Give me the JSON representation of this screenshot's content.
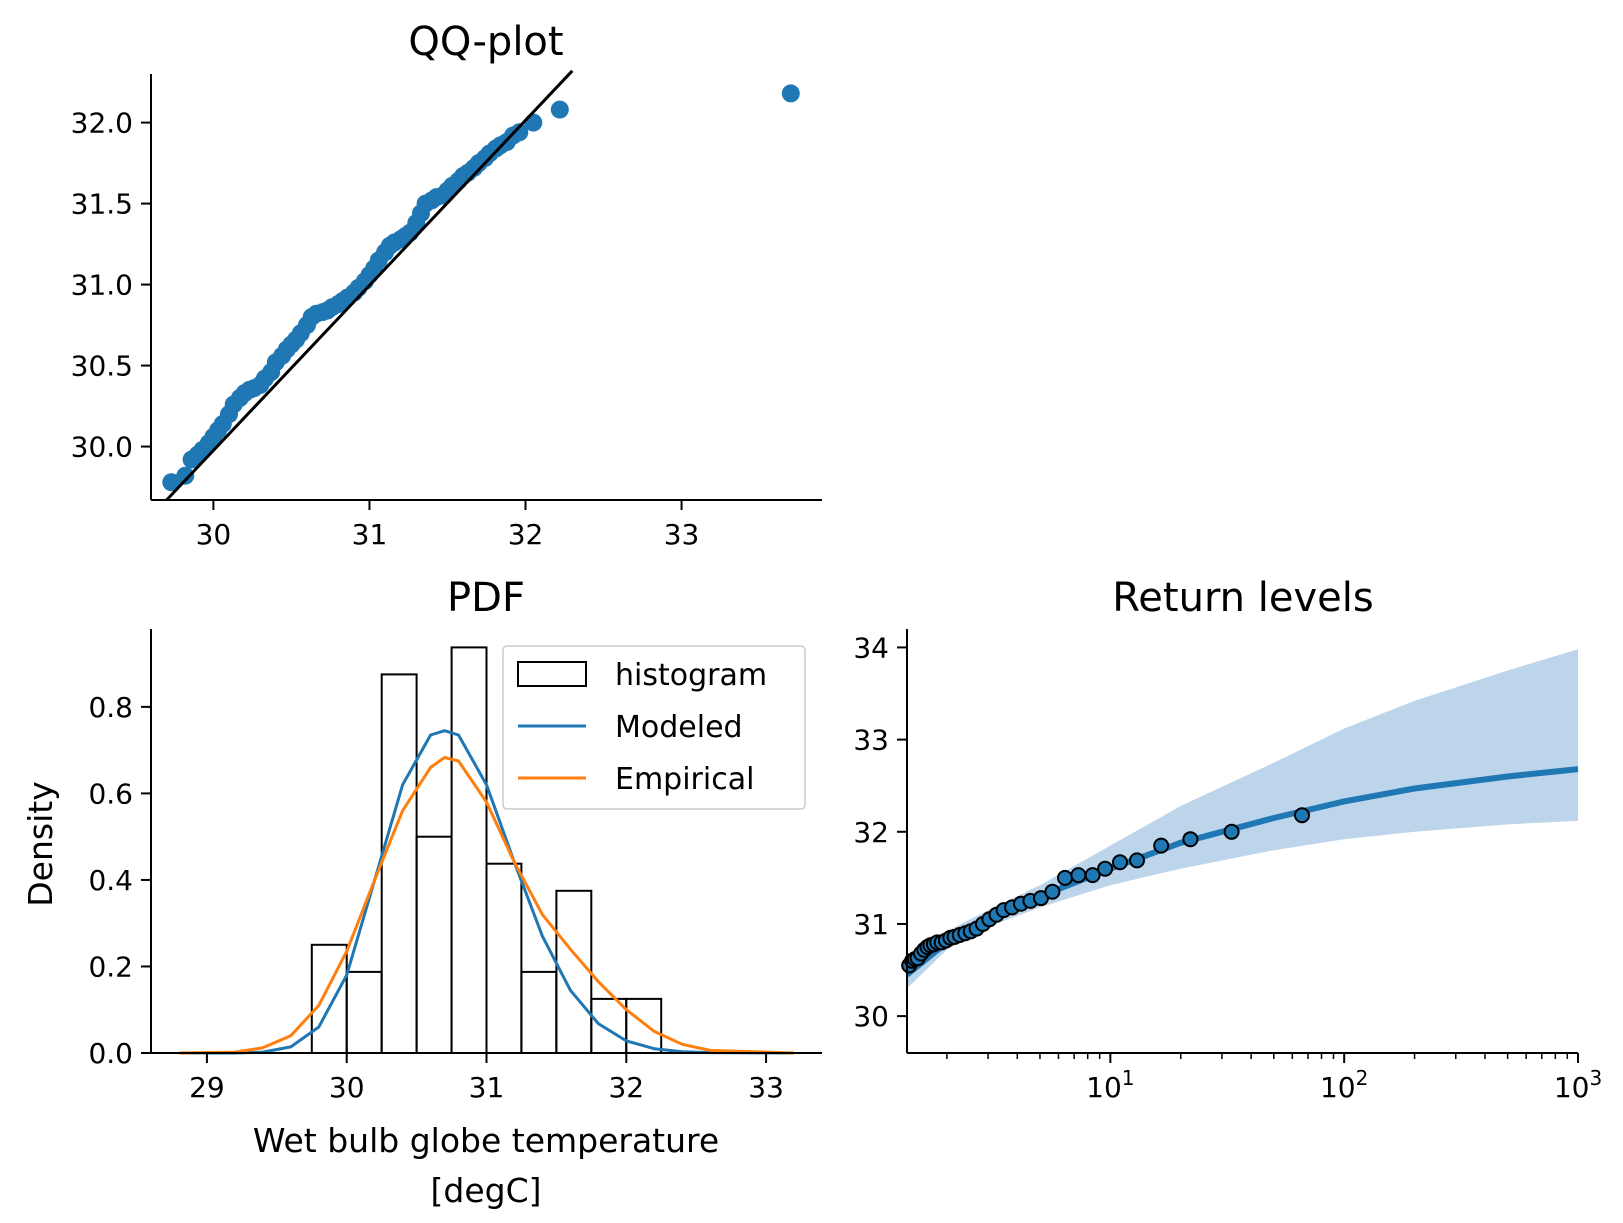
{
  "colors": {
    "blue": "#1f77b4",
    "orange": "#ff7f0e",
    "black": "#000000",
    "band": "#bcd5ea"
  },
  "chart_data": [
    {
      "id": "qq",
      "type": "scatter",
      "title": "QQ-plot",
      "xlabel": "",
      "ylabel": "",
      "xlim": [
        29.6,
        33.9
      ],
      "ylim": [
        29.67,
        32.3
      ],
      "xticks": [
        30,
        31,
        32,
        33
      ],
      "yticks": [
        30.0,
        30.5,
        31.0,
        31.5,
        32.0
      ],
      "xtick_labels": [
        "30",
        "31",
        "32",
        "33"
      ],
      "ytick_labels": [
        "30.0",
        "30.5",
        "31.0",
        "31.5",
        "32.0"
      ],
      "grid": false,
      "series": [
        {
          "kind": "points",
          "color": "#1f77b4",
          "x": [
            29.73,
            29.82,
            29.86,
            29.9,
            29.93,
            29.97,
            30.0,
            30.03,
            30.06,
            30.1,
            30.13,
            30.17,
            30.2,
            30.23,
            30.26,
            30.3,
            30.33,
            30.37,
            30.4,
            30.44,
            30.47,
            30.5,
            30.53,
            30.56,
            30.6,
            30.63,
            30.66,
            30.7,
            30.73,
            30.76,
            30.8,
            30.83,
            30.86,
            30.9,
            30.93,
            30.97,
            31.0,
            31.03,
            31.06,
            31.1,
            31.13,
            31.16,
            31.2,
            31.23,
            31.26,
            31.3,
            31.33,
            31.36,
            31.4,
            31.43,
            31.47,
            31.5,
            31.53,
            31.57,
            31.6,
            31.63,
            31.67,
            31.7,
            31.74,
            31.77,
            31.81,
            31.84,
            31.88,
            31.92,
            31.96,
            32.05,
            32.22,
            33.7
          ],
          "y": [
            29.78,
            29.82,
            29.92,
            29.95,
            29.98,
            30.02,
            30.06,
            30.1,
            30.14,
            30.2,
            30.26,
            30.3,
            30.33,
            30.35,
            30.36,
            30.38,
            30.42,
            30.46,
            30.52,
            30.56,
            30.6,
            30.63,
            30.66,
            30.7,
            30.75,
            30.8,
            30.82,
            30.83,
            30.84,
            30.86,
            30.88,
            30.9,
            30.92,
            30.95,
            30.98,
            31.02,
            31.06,
            31.1,
            31.15,
            31.2,
            31.24,
            31.26,
            31.28,
            31.3,
            31.32,
            31.38,
            31.44,
            31.5,
            31.52,
            31.54,
            31.55,
            31.58,
            31.61,
            31.64,
            31.67,
            31.69,
            31.72,
            31.75,
            31.78,
            31.81,
            31.84,
            31.86,
            31.88,
            31.92,
            31.94,
            32.0,
            32.08,
            32.18
          ]
        },
        {
          "kind": "line",
          "color": "#000000",
          "x": [
            29.7,
            32.3
          ],
          "y": [
            29.67,
            32.32
          ]
        }
      ]
    },
    {
      "id": "pdf",
      "type": "line",
      "title": "PDF",
      "xlabel": "Wet bulb globe temperature\n[degC]",
      "ylabel": "Density",
      "xlim": [
        28.6,
        33.4
      ],
      "ylim": [
        0.0,
        0.98
      ],
      "xticks": [
        29,
        30,
        31,
        32,
        33
      ],
      "yticks": [
        0.0,
        0.2,
        0.4,
        0.6,
        0.8
      ],
      "xtick_labels": [
        "29",
        "30",
        "31",
        "32",
        "33"
      ],
      "ytick_labels": [
        "0.0",
        "0.2",
        "0.4",
        "0.6",
        "0.8"
      ],
      "grid": false,
      "legend": {
        "placement": "top-right",
        "entries": [
          "histogram",
          "Modeled",
          "Empirical"
        ]
      },
      "histogram": {
        "bin_edges": [
          29.75,
          30.0,
          30.25,
          30.5,
          30.75,
          31.0,
          31.25,
          31.5,
          31.75,
          32.0,
          32.25
        ],
        "density": [
          0.25,
          0.1875,
          0.875,
          0.5,
          0.9375,
          0.4375,
          0.1875,
          0.375,
          0.125,
          0.125
        ]
      },
      "series": [
        {
          "name": "Modeled",
          "color": "#1f77b4",
          "x": [
            28.8,
            29.2,
            29.4,
            29.6,
            29.8,
            30.0,
            30.2,
            30.4,
            30.6,
            30.7,
            30.8,
            31.0,
            31.2,
            31.4,
            31.6,
            31.8,
            32.0,
            32.2,
            32.4,
            32.6,
            33.2
          ],
          "y": [
            0.0,
            0.0,
            0.002,
            0.014,
            0.06,
            0.18,
            0.4,
            0.62,
            0.735,
            0.745,
            0.735,
            0.62,
            0.44,
            0.27,
            0.145,
            0.068,
            0.028,
            0.01,
            0.003,
            0.001,
            0.0
          ]
        },
        {
          "name": "Empirical",
          "color": "#ff7f0e",
          "x": [
            28.8,
            29.2,
            29.4,
            29.6,
            29.8,
            30.0,
            30.2,
            30.4,
            30.6,
            30.7,
            30.8,
            31.0,
            31.2,
            31.4,
            31.6,
            31.8,
            32.0,
            32.2,
            32.4,
            32.6,
            33.2
          ],
          "y": [
            0.0,
            0.002,
            0.012,
            0.04,
            0.11,
            0.235,
            0.4,
            0.56,
            0.66,
            0.683,
            0.675,
            0.58,
            0.44,
            0.32,
            0.24,
            0.165,
            0.1,
            0.05,
            0.02,
            0.006,
            0.0
          ]
        }
      ]
    },
    {
      "id": "return",
      "type": "line",
      "title": "Return levels",
      "xlabel": "",
      "ylabel": "",
      "xscale": "log",
      "xlim": [
        1.35,
        1000
      ],
      "ylim": [
        29.6,
        34.2
      ],
      "xticks": [
        10,
        100,
        1000
      ],
      "yticks": [
        30,
        31,
        32,
        33,
        34
      ],
      "xtick_labels": [
        "10^1",
        "10^2",
        "10^3"
      ],
      "ytick_labels": [
        "30",
        "31",
        "32",
        "33",
        "34"
      ],
      "grid": false,
      "band": {
        "color": "#bcd5ea",
        "x": [
          1.35,
          2,
          3,
          5,
          10,
          20,
          50,
          100,
          200,
          500,
          1000
        ],
        "lower": [
          30.3,
          30.72,
          30.97,
          31.18,
          31.42,
          31.6,
          31.8,
          31.92,
          32.0,
          32.08,
          32.12
        ],
        "upper": [
          30.5,
          30.92,
          31.15,
          31.42,
          31.85,
          32.28,
          32.75,
          33.12,
          33.42,
          33.75,
          33.98
        ]
      },
      "series": [
        {
          "name": "",
          "color": "#1f77b4",
          "x": [
            1.35,
            2,
            3,
            5,
            10,
            20,
            50,
            100,
            200,
            500,
            1000
          ],
          "y": [
            30.45,
            30.8,
            31.05,
            31.3,
            31.6,
            31.88,
            32.15,
            32.33,
            32.47,
            32.6,
            32.68
          ]
        }
      ],
      "points": {
        "color": "#1f77b4",
        "edge_color": "#000000",
        "x": [
          1.38,
          1.42,
          1.46,
          1.5,
          1.55,
          1.6,
          1.65,
          1.7,
          1.76,
          1.82,
          1.9,
          1.98,
          2.07,
          2.16,
          2.27,
          2.4,
          2.53,
          2.68,
          2.85,
          3.04,
          3.26,
          3.5,
          3.8,
          4.15,
          4.55,
          5.05,
          5.65,
          6.4,
          7.3,
          8.4,
          9.5,
          11.0,
          13.0,
          16.5,
          22.0,
          33.0,
          66.0
        ],
        "y": [
          30.55,
          30.6,
          30.62,
          30.63,
          30.68,
          30.72,
          30.75,
          30.77,
          30.78,
          30.8,
          30.8,
          30.82,
          30.85,
          30.86,
          30.88,
          30.9,
          30.92,
          30.95,
          31.0,
          31.05,
          31.1,
          31.15,
          31.18,
          31.22,
          31.25,
          31.28,
          31.35,
          31.5,
          31.53,
          31.53,
          31.6,
          31.67,
          31.69,
          31.85,
          31.92,
          32.0,
          32.18
        ]
      }
    }
  ]
}
